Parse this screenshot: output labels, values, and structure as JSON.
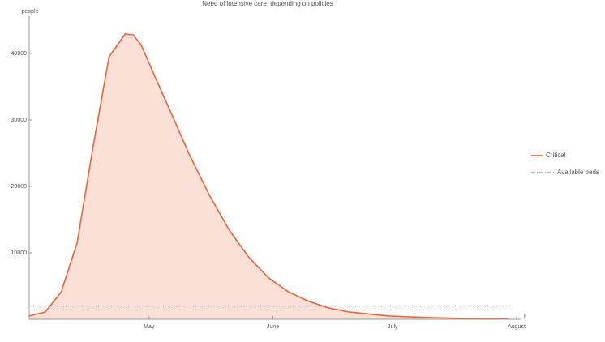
{
  "chart_data": {
    "type": "area",
    "title": "Need of intensive care, depending on policies",
    "y_label": "people",
    "x_label": "t",
    "x": [
      0,
      4,
      8,
      12,
      16,
      20,
      24,
      26,
      28,
      32,
      36,
      40,
      45,
      50,
      55,
      60,
      65,
      70,
      75,
      80,
      90,
      100,
      110,
      120
    ],
    "series": [
      {
        "name": "Critical",
        "color": "#e8643c",
        "fill": "#fbe0d8",
        "values": [
          500,
          1100,
          4100,
          11500,
          26000,
          39500,
          42900,
          42800,
          41300,
          35800,
          30400,
          24900,
          18800,
          13500,
          9300,
          6200,
          4100,
          2700,
          1700,
          1100,
          500,
          250,
          120,
          50
        ]
      },
      {
        "name": "Available beds",
        "color": "#666666",
        "value": 2000,
        "xrange": [
          0,
          120
        ]
      }
    ],
    "xlim": [
      0,
      122
    ],
    "xticks": [
      {
        "value": 30,
        "label": "May"
      },
      {
        "value": 61,
        "label": "June"
      },
      {
        "value": 91,
        "label": "July"
      },
      {
        "value": 122,
        "label": "August"
      }
    ],
    "ylim": [
      0,
      45600
    ],
    "yticks": [
      10000,
      20000,
      30000,
      40000
    ]
  }
}
